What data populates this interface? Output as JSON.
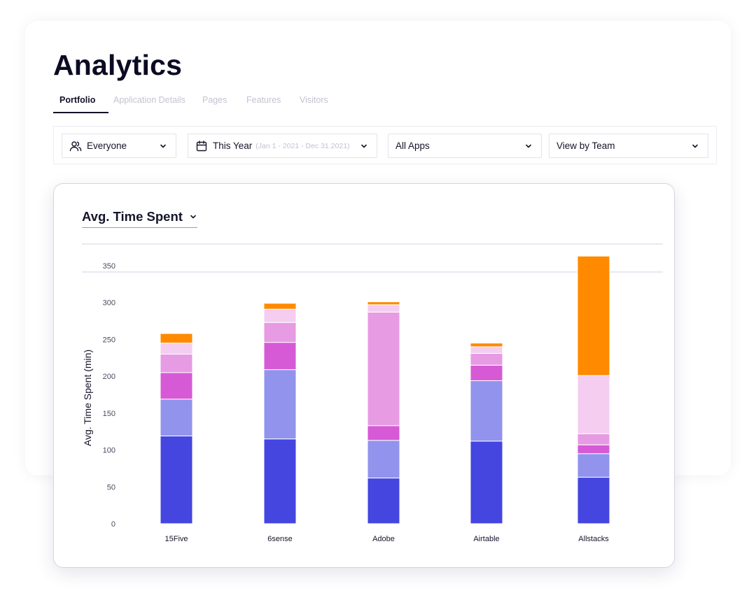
{
  "page": {
    "title": "Analytics"
  },
  "tabs": [
    {
      "label": "Portfolio",
      "active": true
    },
    {
      "label": "Application Details",
      "active": false
    },
    {
      "label": "Pages",
      "active": false
    },
    {
      "label": "Features",
      "active": false
    },
    {
      "label": "Visitors",
      "active": false
    }
  ],
  "filters": {
    "audience": {
      "label": "Everyone",
      "icon": "users-icon"
    },
    "date": {
      "label": "This Year",
      "range": "(Jan 1 - 2021 - Dec 31.2021)",
      "icon": "calendar-icon"
    },
    "apps": {
      "label": "All Apps"
    },
    "view": {
      "label": "View by Team"
    }
  },
  "chart_header": {
    "title": "Avg. Time Spent"
  },
  "chart_data": {
    "type": "bar",
    "stacked": true,
    "categories": [
      "15Five",
      "6sense",
      "Adobe",
      "Airtable",
      "Allstacks"
    ],
    "series": [
      {
        "color": "#4545e0",
        "values": [
          119,
          115,
          62,
          112,
          63
        ]
      },
      {
        "color": "#9193ec",
        "values": [
          50,
          94,
          51,
          82,
          32
        ]
      },
      {
        "color": "#d65ad6",
        "values": [
          36,
          37,
          20,
          21,
          12
        ]
      },
      {
        "color": "#e69be3",
        "values": [
          25,
          27,
          154,
          16,
          15
        ]
      },
      {
        "color": "#f4cdf1",
        "values": [
          15,
          18,
          10,
          9,
          79
        ]
      },
      {
        "color": "#ff8a00",
        "values": [
          13,
          8,
          4,
          5,
          162
        ]
      }
    ],
    "ylabel": "Avg. Time Spent (min)",
    "ylim": [
      0,
      350
    ],
    "yticks": [
      0,
      50,
      100,
      150,
      200,
      250,
      300,
      350
    ],
    "grid": false
  }
}
